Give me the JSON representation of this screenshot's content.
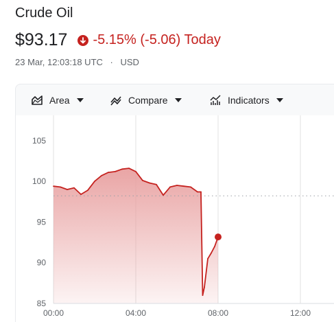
{
  "header": {
    "title": "Crude Oil",
    "price": "$93.17",
    "change": "-5.15% (-5.06) Today",
    "timestamp": "23 Mar, 12:03:18 UTC",
    "separator": "·",
    "currency": "USD",
    "change_icon": "arrow-down-circle-icon",
    "negative_color": "#c5221f"
  },
  "toolbar": {
    "area": {
      "label": "Area",
      "icon": "area-chart-icon"
    },
    "compare": {
      "label": "Compare",
      "icon": "compare-icon"
    },
    "indicators": {
      "label": "Indicators",
      "icon": "indicators-icon"
    }
  },
  "chart_data": {
    "type": "area",
    "series": [
      {
        "x": [
          "00:00",
          "00:20",
          "00:40",
          "01:00",
          "01:20",
          "01:40",
          "02:00",
          "02:20",
          "02:40",
          "03:00",
          "03:20",
          "03:40",
          "04:00",
          "04:20",
          "04:40",
          "05:00",
          "05:20",
          "05:40",
          "06:00",
          "06:20",
          "06:40",
          "07:00",
          "07:10",
          "07:15",
          "07:20",
          "07:30",
          "07:40",
          "07:50",
          "08:00"
        ],
        "values": [
          99.4,
          99.3,
          99.0,
          99.2,
          98.4,
          98.9,
          100.0,
          100.7,
          101.1,
          101.2,
          101.5,
          101.6,
          101.2,
          100.1,
          99.8,
          99.6,
          98.3,
          99.3,
          99.5,
          99.4,
          99.3,
          98.7,
          98.7,
          86.0,
          87.0,
          90.5,
          91.2,
          92.0,
          93.17
        ]
      }
    ],
    "previous_close": 98.22,
    "y_ticks": [
      85,
      90,
      95,
      100,
      105
    ],
    "ylim": [
      85,
      107.5
    ],
    "x_ticks": [
      "00:00",
      "04:00",
      "08:00",
      "12:00"
    ],
    "line_color": "#c5221f",
    "fill_color": "#e8a0a0"
  }
}
